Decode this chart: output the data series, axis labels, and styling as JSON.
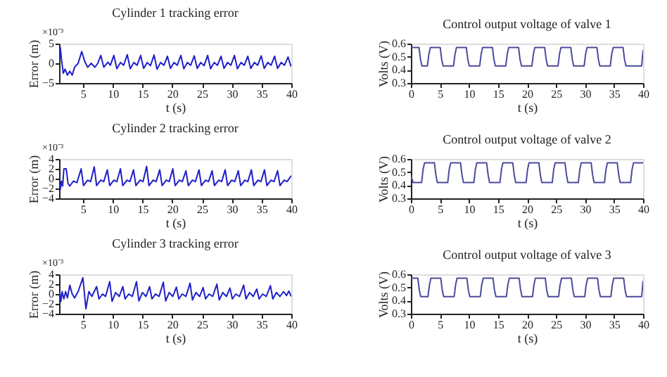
{
  "chart_data": [
    {
      "type": "line",
      "title": "Cylinder 1 tracking error",
      "xlabel": "t (s)",
      "ylabel": "Error (m)",
      "annotations": [
        "×10⁻³"
      ],
      "xlim": [
        1,
        40
      ],
      "xticks": [
        5,
        10,
        15,
        20,
        25,
        30,
        35,
        40
      ],
      "ylim": [
        -5,
        5
      ],
      "yticks": [
        -5,
        0,
        5
      ],
      "x": [
        1,
        1.2,
        1.4,
        1.7,
        2,
        2.4,
        2.8,
        3.2,
        3.6,
        4.2,
        4.8,
        5.3,
        5.8,
        6.4,
        7,
        7.5,
        8,
        8.5,
        9.2,
        9.6,
        10.2,
        10.7,
        11.3,
        11.85,
        12.45,
        12.95,
        13.55,
        14.1,
        14.7,
        15.2,
        15.8,
        16.35,
        16.95,
        17.45,
        18.05,
        18.6,
        19.2,
        19.7,
        20.3,
        20.85,
        21.45,
        21.95,
        22.55,
        23.1,
        23.7,
        24.2,
        24.8,
        25.35,
        25.95,
        26.45,
        27.05,
        27.6,
        28.2,
        28.7,
        29.3,
        29.85,
        30.45,
        30.95,
        31.55,
        32.1,
        32.7,
        33.2,
        33.8,
        34.35,
        34.95,
        35.45,
        36.05,
        36.6,
        37.2,
        37.7,
        38.3,
        38.85,
        39.45,
        39.95
      ],
      "series": [
        {
          "color": "#1f1fc8",
          "values": [
            0,
            4,
            1,
            -2.5,
            -1.5,
            -3,
            -2,
            -3,
            -1,
            0,
            3,
            0.5,
            -1,
            0,
            -1,
            0,
            2,
            -1,
            0.3,
            -0.5,
            2,
            -1.4,
            0.2,
            -0.5,
            2.2,
            -1.4,
            0.2,
            -0.5,
            2,
            -1.3,
            0.2,
            -0.6,
            2.1,
            -1.5,
            0.2,
            -0.5,
            1.8,
            -1.3,
            0.2,
            -0.5,
            2,
            -1.4,
            0.2,
            -0.5,
            1.9,
            -1.3,
            0.2,
            -0.6,
            2,
            -1.4,
            0.2,
            -0.5,
            1.8,
            -1.3,
            0.2,
            -0.5,
            2,
            -1.4,
            0.2,
            -0.5,
            1.8,
            -1.3,
            0.2,
            -0.5,
            1.9,
            -1.3,
            0.2,
            -0.5,
            1.8,
            -1.3,
            0.2,
            -0.5,
            1.6,
            -0.8
          ]
        }
      ]
    },
    {
      "type": "line",
      "title": "Control output voltage of valve 1",
      "xlabel": "t (s)",
      "ylabel": "Volts (V)",
      "xlim": [
        0,
        40
      ],
      "xticks": [
        0,
        5,
        10,
        15,
        20,
        25,
        30,
        35,
        40
      ],
      "ylim": [
        0.3,
        0.6
      ],
      "yticks": [
        0.3,
        0.4,
        0.5,
        0.6
      ],
      "x": [
        0,
        1.4,
        1.65,
        1.9,
        2.85,
        3.1,
        3.35,
        5.05,
        5.3,
        5.55,
        7.35,
        7.6,
        7.85,
        9.55,
        9.8,
        10.05,
        11.85,
        12.1,
        12.35,
        14.05,
        14.3,
        14.55,
        16.35,
        16.6,
        16.85,
        18.55,
        18.8,
        19.05,
        20.85,
        21.1,
        21.35,
        23.05,
        23.3,
        23.55,
        25.35,
        25.6,
        25.85,
        27.55,
        27.8,
        28.05,
        29.85,
        30.1,
        30.35,
        32.05,
        32.3,
        32.55,
        34.35,
        34.6,
        34.85,
        36.55,
        36.8,
        37.05,
        39.75,
        40
      ],
      "series": [
        {
          "color": "#4b4b9b",
          "values": [
            0.57,
            0.57,
            0.48,
            0.43,
            0.43,
            0.52,
            0.57,
            0.57,
            0.48,
            0.43,
            0.43,
            0.52,
            0.57,
            0.57,
            0.48,
            0.43,
            0.43,
            0.52,
            0.57,
            0.57,
            0.48,
            0.43,
            0.43,
            0.52,
            0.57,
            0.57,
            0.48,
            0.43,
            0.43,
            0.52,
            0.57,
            0.57,
            0.48,
            0.43,
            0.43,
            0.52,
            0.57,
            0.57,
            0.48,
            0.43,
            0.43,
            0.52,
            0.57,
            0.57,
            0.48,
            0.43,
            0.43,
            0.52,
            0.57,
            0.57,
            0.48,
            0.43,
            0.43,
            0.55
          ]
        }
      ]
    },
    {
      "type": "line",
      "title": "Cylinder 2 tracking error",
      "xlabel": "t (s)",
      "ylabel": "Error (m)",
      "annotations": [
        "×10⁻³"
      ],
      "xlim": [
        1,
        40
      ],
      "xticks": [
        5,
        10,
        15,
        20,
        25,
        30,
        35,
        40
      ],
      "ylim": [
        -4,
        4
      ],
      "yticks": [
        -4,
        -2,
        0,
        2,
        4
      ],
      "x": [
        1,
        1.2,
        1.4,
        1.6,
        1.8,
        2.2,
        2.5,
        2.8,
        3.4,
        4,
        4.7,
        5.1,
        5.8,
        6.3,
        6.9,
        7.3,
        8,
        8.5,
        9.1,
        9.5,
        10.2,
        10.7,
        11.3,
        11.7,
        12.4,
        12.9,
        13.5,
        13.9,
        14.6,
        15.1,
        15.7,
        16.1,
        16.8,
        17.3,
        17.9,
        18.3,
        19,
        19.5,
        20.1,
        20.5,
        21.2,
        21.7,
        22.3,
        22.7,
        23.4,
        23.9,
        24.5,
        24.9,
        25.6,
        26.1,
        26.7,
        27.1,
        27.8,
        28.3,
        28.9,
        29.3,
        30,
        30.5,
        31.1,
        31.5,
        32.2,
        32.7,
        33.3,
        33.7,
        34.4,
        34.9,
        35.5,
        35.9,
        36.6,
        37.1,
        37.7,
        38.1,
        38.8,
        39.3,
        40
      ],
      "series": [
        {
          "color": "#1f1fc8",
          "values": [
            -1,
            -2.2,
            -0.5,
            -1.5,
            2,
            2,
            -1,
            -1.5,
            -0.5,
            -0.8,
            2,
            -1.4,
            -0.3,
            -0.6,
            2.4,
            -1.4,
            -0.3,
            -0.6,
            1.8,
            -1.4,
            -0.3,
            -0.6,
            2,
            -1.4,
            -0.3,
            -0.6,
            1.8,
            -1.4,
            -0.3,
            -0.6,
            2.5,
            -1.4,
            -0.3,
            -0.6,
            1.8,
            -1.4,
            -0.3,
            -0.6,
            2,
            -1.4,
            -0.3,
            -0.6,
            1.6,
            -1.4,
            -0.3,
            -0.6,
            1.8,
            -1.4,
            -0.3,
            -0.6,
            1.6,
            -1.4,
            -0.3,
            -0.6,
            1.8,
            -1.4,
            -0.3,
            -0.6,
            1.6,
            -1.4,
            -0.3,
            -0.6,
            1.8,
            -1.4,
            -0.3,
            -0.6,
            1.8,
            -1.4,
            -0.3,
            -0.6,
            1.6,
            -1.4,
            -0.3,
            -0.6,
            0.6
          ]
        }
      ]
    },
    {
      "type": "line",
      "title": "Control output voltage of valve 2",
      "xlabel": "t (s)",
      "ylabel": "Volts (V)",
      "xlim": [
        0,
        40
      ],
      "xticks": [
        0,
        5,
        10,
        15,
        20,
        25,
        30,
        35,
        40
      ],
      "ylim": [
        0.3,
        0.6
      ],
      "yticks": [
        0.3,
        0.4,
        0.5,
        0.6
      ],
      "x": [
        0,
        0.4,
        1.85,
        2.1,
        2.35,
        4.05,
        4.3,
        4.55,
        6.35,
        6.6,
        6.85,
        8.55,
        8.8,
        9.05,
        10.85,
        11.1,
        11.35,
        13.05,
        13.3,
        13.55,
        15.35,
        15.6,
        15.85,
        17.55,
        17.8,
        18.05,
        19.85,
        20.1,
        20.35,
        22.05,
        22.3,
        22.55,
        24.35,
        24.6,
        24.85,
        26.55,
        26.8,
        27.05,
        28.85,
        29.1,
        29.35,
        31.05,
        31.3,
        31.55,
        33.35,
        33.6,
        33.85,
        35.55,
        35.8,
        36.05,
        37.85,
        38.1,
        38.35,
        40
      ],
      "series": [
        {
          "color": "#4b4b9b",
          "values": [
            0.47,
            0.42,
            0.42,
            0.52,
            0.57,
            0.57,
            0.48,
            0.42,
            0.42,
            0.52,
            0.57,
            0.57,
            0.48,
            0.42,
            0.42,
            0.52,
            0.57,
            0.57,
            0.48,
            0.42,
            0.42,
            0.52,
            0.57,
            0.57,
            0.48,
            0.42,
            0.42,
            0.52,
            0.57,
            0.57,
            0.48,
            0.42,
            0.42,
            0.52,
            0.57,
            0.57,
            0.48,
            0.42,
            0.42,
            0.52,
            0.57,
            0.57,
            0.48,
            0.42,
            0.42,
            0.52,
            0.57,
            0.57,
            0.48,
            0.42,
            0.42,
            0.52,
            0.57,
            0.57
          ]
        }
      ]
    },
    {
      "type": "line",
      "title": "Cylinder 3 tracking error",
      "xlabel": "t (s)",
      "ylabel": "Error (m)",
      "annotations": [
        "×10⁻³"
      ],
      "xlim": [
        1,
        40
      ],
      "xticks": [
        5,
        10,
        15,
        20,
        25,
        30,
        35,
        40
      ],
      "ylim": [
        -4,
        4
      ],
      "yticks": [
        -4,
        -2,
        0,
        2,
        4
      ],
      "x": [
        1,
        1.1,
        1.3,
        1.5,
        1.8,
        2.1,
        2.4,
        2.8,
        3.2,
        3.6,
        4.2,
        5,
        5.5,
        6,
        6.5,
        7.3,
        7.7,
        8.3,
        8.8,
        9.5,
        9.9,
        10.5,
        11.1,
        11.7,
        12.1,
        12.7,
        13.3,
        14,
        14.4,
        15,
        15.6,
        16.2,
        16.6,
        17.2,
        17.8,
        18.5,
        18.9,
        19.5,
        20.1,
        20.7,
        21.1,
        21.7,
        22.3,
        23,
        23.4,
        24,
        24.6,
        25.2,
        25.6,
        26.2,
        26.8,
        27.5,
        27.9,
        28.5,
        29.1,
        29.7,
        30.1,
        30.7,
        31.3,
        32,
        32.4,
        33,
        33.6,
        34.2,
        34.6,
        35.2,
        35.8,
        36.5,
        36.9,
        37.5,
        38.1,
        38.7,
        39.2,
        39.6,
        40
      ],
      "series": [
        {
          "color": "#1f1fc8",
          "values": [
            -2,
            0.5,
            -1.5,
            0.5,
            -1,
            0.5,
            -0.8,
            1.8,
            0,
            -0.8,
            0.5,
            3.3,
            -3,
            0.5,
            -0.5,
            1.5,
            -1,
            0,
            -0.5,
            2.5,
            -1.5,
            0.3,
            -0.5,
            1.5,
            -1,
            0,
            -0.5,
            2.5,
            -1.4,
            0.3,
            -0.5,
            1.5,
            -1,
            0,
            -0.5,
            2.4,
            -1.4,
            0.3,
            -0.5,
            1.4,
            -1,
            0,
            -0.5,
            2.2,
            -1.2,
            0.3,
            -0.5,
            1.3,
            -1,
            0,
            -0.5,
            2,
            -1.2,
            0.3,
            -0.5,
            1.2,
            -1,
            0,
            -0.5,
            1.8,
            -1,
            0.3,
            -0.5,
            1,
            -1,
            0,
            -0.5,
            1.7,
            -1,
            0.3,
            -0.5,
            0.5,
            -0.3,
            0.6,
            -0.5
          ]
        }
      ]
    },
    {
      "type": "line",
      "title": "Control output voltage of valve 3",
      "xlabel": "t (s)",
      "ylabel": "Volts (V)",
      "xlim": [
        0,
        40
      ],
      "xticks": [
        0,
        5,
        10,
        15,
        20,
        25,
        30,
        35,
        40
      ],
      "ylim": [
        0.3,
        0.6
      ],
      "yticks": [
        0.3,
        0.4,
        0.5,
        0.6
      ],
      "x": [
        0,
        1.2,
        1.45,
        1.7,
        2.95,
        3.2,
        3.45,
        5.15,
        5.4,
        5.65,
        7.45,
        7.7,
        7.95,
        9.65,
        9.9,
        10.15,
        11.95,
        12.2,
        12.45,
        14.15,
        14.4,
        14.65,
        16.45,
        16.7,
        16.95,
        18.65,
        18.9,
        19.15,
        20.95,
        21.2,
        21.45,
        23.15,
        23.4,
        23.65,
        25.45,
        25.7,
        25.95,
        27.65,
        27.9,
        28.15,
        29.95,
        30.2,
        30.45,
        32.15,
        32.4,
        32.65,
        34.45,
        34.7,
        34.95,
        36.65,
        36.9,
        37.15,
        39.75,
        40
      ],
      "series": [
        {
          "color": "#4b4b9b",
          "values": [
            0.57,
            0.57,
            0.48,
            0.43,
            0.43,
            0.52,
            0.57,
            0.57,
            0.48,
            0.43,
            0.43,
            0.52,
            0.57,
            0.57,
            0.48,
            0.43,
            0.43,
            0.52,
            0.57,
            0.57,
            0.48,
            0.43,
            0.43,
            0.52,
            0.57,
            0.57,
            0.48,
            0.43,
            0.43,
            0.52,
            0.57,
            0.57,
            0.48,
            0.43,
            0.43,
            0.52,
            0.57,
            0.57,
            0.48,
            0.43,
            0.43,
            0.52,
            0.57,
            0.57,
            0.48,
            0.43,
            0.43,
            0.52,
            0.57,
            0.57,
            0.48,
            0.43,
            0.43,
            0.55
          ]
        }
      ]
    }
  ]
}
